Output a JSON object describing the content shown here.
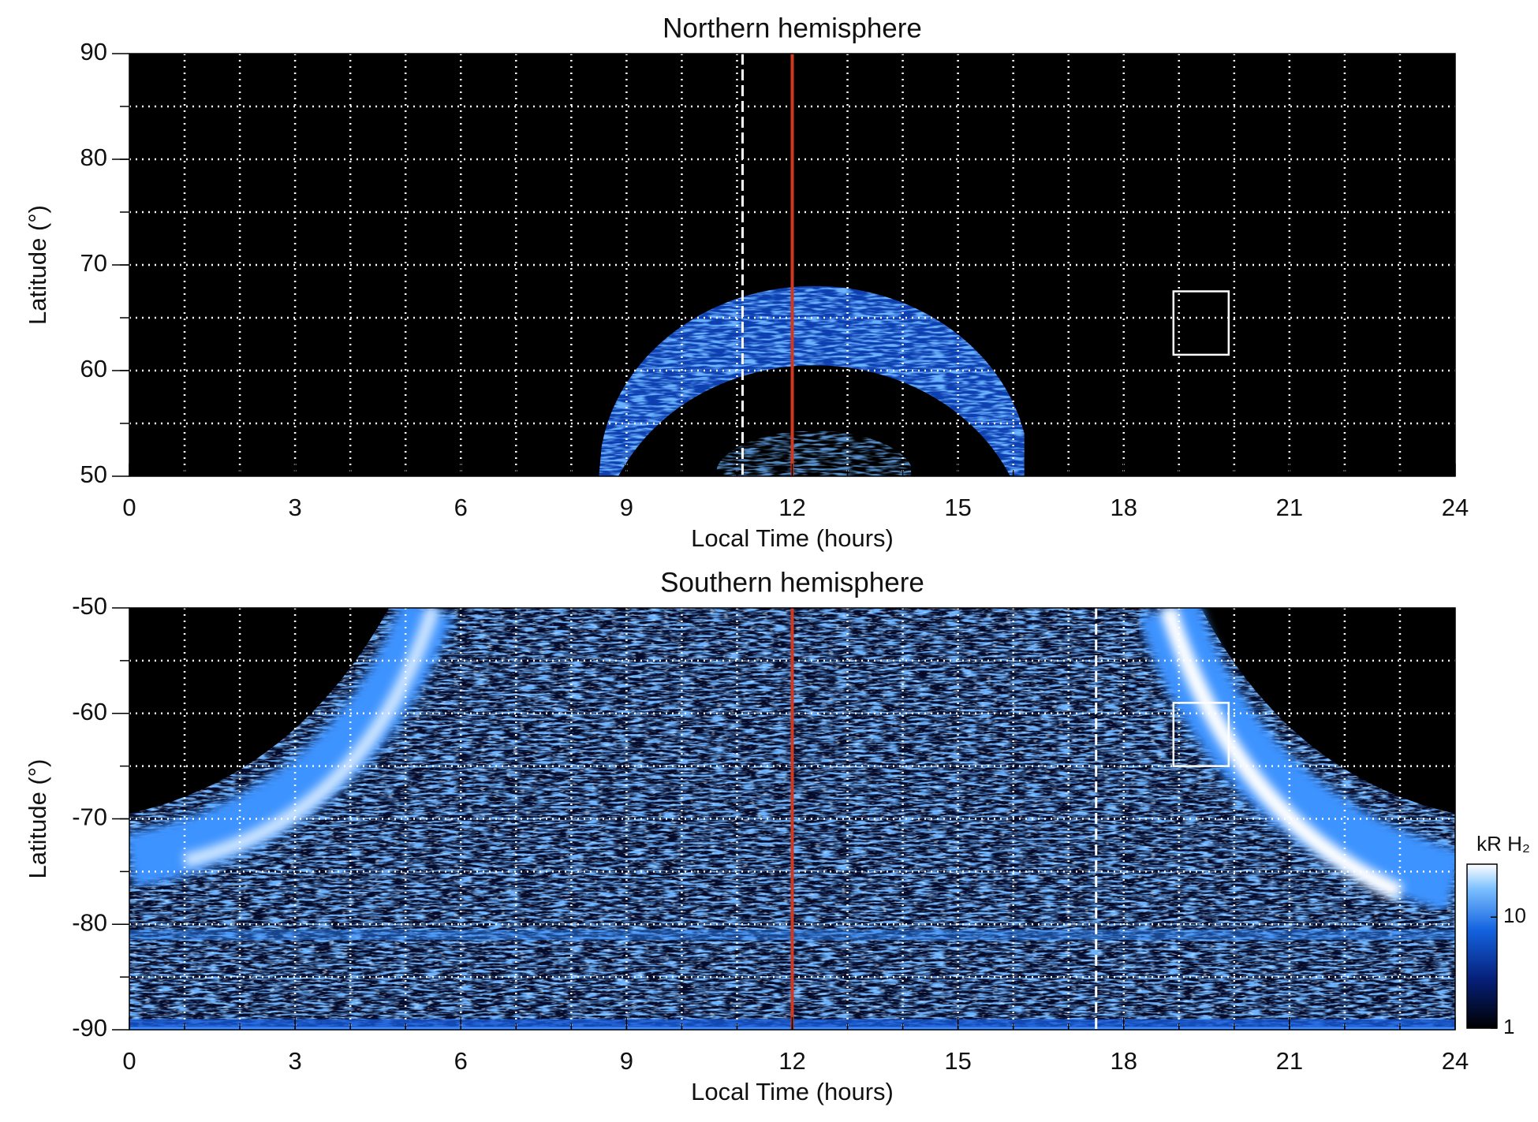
{
  "chart_data": [
    {
      "type": "heatmap",
      "title": "Northern hemisphere",
      "xlabel": "Local Time (hours)",
      "ylabel": "Latitude (°)",
      "xlim": [
        0,
        24
      ],
      "xticks": [
        0,
        3,
        6,
        9,
        12,
        15,
        18,
        21,
        24
      ],
      "ylim": [
        50,
        90
      ],
      "yticks": [
        50,
        60,
        70,
        80,
        90
      ],
      "grid": true,
      "xgrid": [
        1,
        2,
        3,
        4,
        5,
        6,
        7,
        8,
        9,
        10,
        11,
        12,
        13,
        14,
        15,
        16,
        17,
        18,
        19,
        20,
        21,
        22,
        23
      ],
      "ygrid": [
        55,
        60,
        65,
        70,
        75,
        80,
        85
      ],
      "vlines": [
        {
          "x": 11.1,
          "color": "#ffffff",
          "style": "dashed"
        },
        {
          "x": 12,
          "color": "#d0391f",
          "style": "solid"
        }
      ],
      "box": {
        "x": [
          18.9,
          19.9
        ],
        "y": [
          61.5,
          67.5
        ],
        "color": "#ffffff"
      }
    },
    {
      "type": "heatmap",
      "title": "Southern hemisphere",
      "xlabel": "Local Time (hours)",
      "ylabel": "Latitude (°)",
      "xlim": [
        0,
        24
      ],
      "xticks": [
        0,
        3,
        6,
        9,
        12,
        15,
        18,
        21,
        24
      ],
      "ylim": [
        -90,
        -50
      ],
      "yticks": [
        -90,
        -80,
        -70,
        -60,
        -50
      ],
      "grid": true,
      "xgrid": [
        1,
        2,
        3,
        4,
        5,
        6,
        7,
        8,
        9,
        10,
        11,
        12,
        13,
        14,
        15,
        16,
        17,
        18,
        19,
        20,
        21,
        22,
        23
      ],
      "ygrid": [
        -85,
        -80,
        -75,
        -70,
        -65,
        -60,
        -55
      ],
      "vlines": [
        {
          "x": 17.5,
          "color": "#ffffff",
          "style": "dashed"
        },
        {
          "x": 12,
          "color": "#d0391f",
          "style": "solid"
        }
      ],
      "box": {
        "x": [
          18.9,
          19.9
        ],
        "y": [
          -65,
          -59
        ],
        "color": "#ffffff"
      },
      "colorbar": {
        "label": "kR H₂",
        "clim": [
          1,
          30
        ],
        "ticks": [
          1,
          10
        ],
        "log": true
      }
    }
  ]
}
